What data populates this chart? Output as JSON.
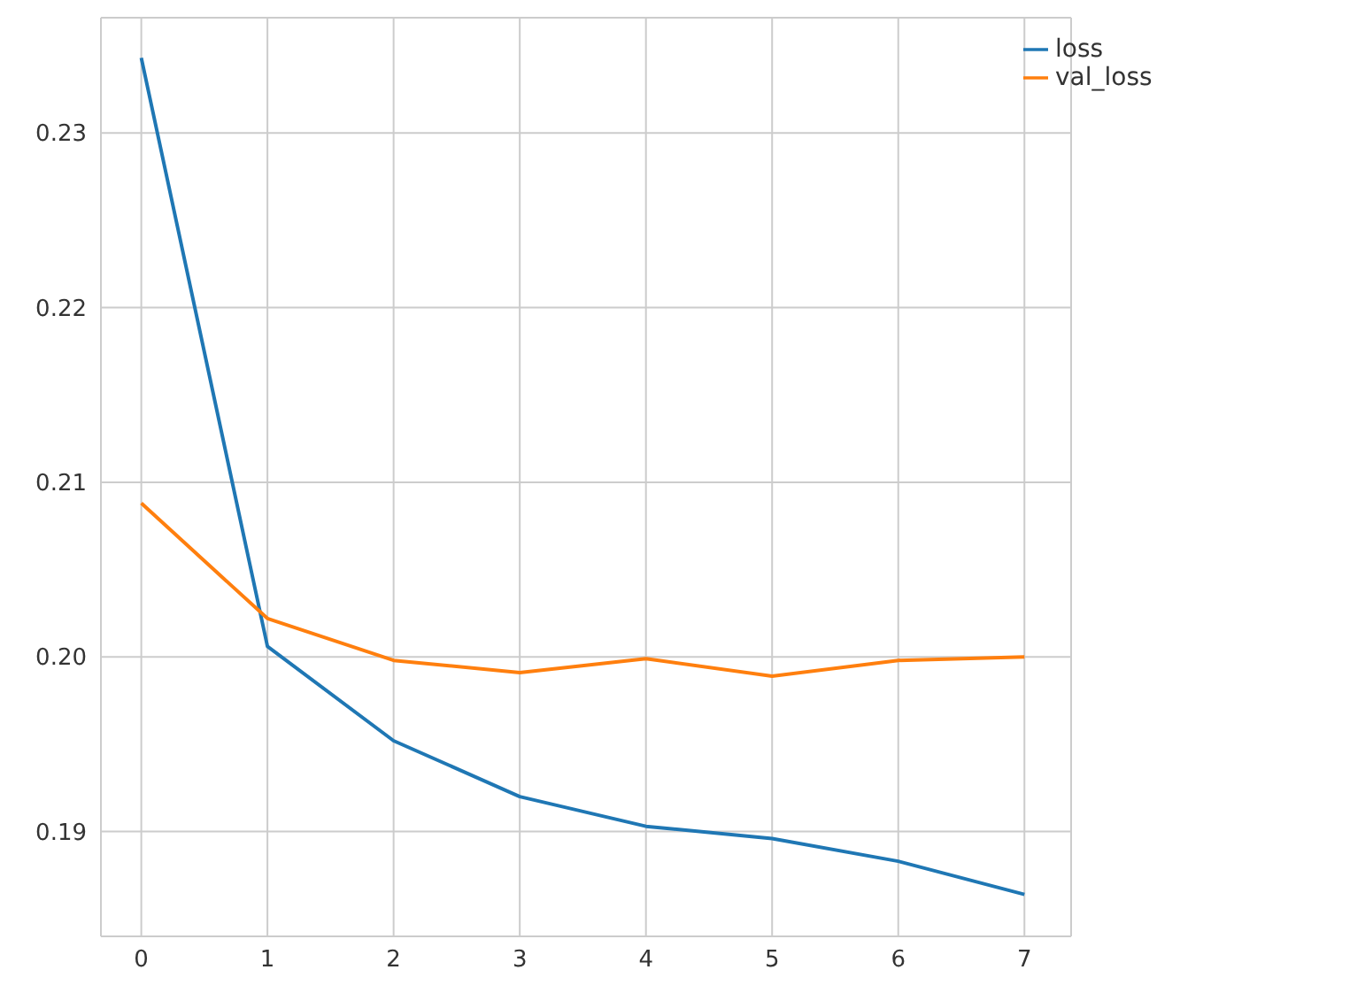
{
  "chart_data": {
    "type": "line",
    "x": [
      0,
      1,
      2,
      3,
      4,
      5,
      6,
      7
    ],
    "series": [
      {
        "name": "loss",
        "color": "#1f77b4",
        "values": [
          0.2343,
          0.2006,
          0.1952,
          0.192,
          0.1903,
          0.1896,
          0.1883,
          0.1864
        ]
      },
      {
        "name": "val_loss",
        "color": "#ff7f0e",
        "values": [
          0.2088,
          0.2022,
          0.1998,
          0.1991,
          0.1999,
          0.1989,
          0.1998,
          0.2
        ]
      }
    ],
    "xlim": [
      -0.32,
      7.37
    ],
    "xticks": [
      0,
      1,
      2,
      3,
      4,
      5,
      6,
      7
    ],
    "ylim": [
      0.184,
      0.2366
    ],
    "yticks": [
      0.19,
      {
        "value": 0.2,
        "label": "0.20"
      },
      0.21,
      0.22,
      0.23
    ],
    "grid": true,
    "legend": "top right",
    "marker": "none",
    "line_style": "solid"
  }
}
